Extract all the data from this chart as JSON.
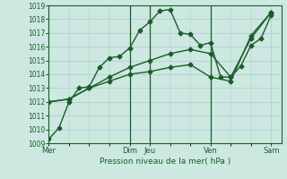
{
  "background_color": "#cce8e0",
  "grid_color": "#aacccc",
  "line_color": "#1a5c2a",
  "title": "Pression niveau de la mer( hPa )",
  "ylim": [
    1009,
    1019
  ],
  "yticks": [
    1009,
    1010,
    1011,
    1012,
    1013,
    1014,
    1015,
    1016,
    1017,
    1018,
    1019
  ],
  "x_day_labels": [
    "Mer",
    "Dim",
    "Jeu",
    "Ven",
    "Sam"
  ],
  "x_day_positions": [
    0,
    4.0,
    5.0,
    8.0,
    11.0
  ],
  "xlim": [
    0,
    11.5
  ],
  "vlines": [
    4.0,
    5.0,
    8.0
  ],
  "series1_x": [
    0,
    0.5,
    1.0,
    1.5,
    2.0,
    2.5,
    3.0,
    3.5,
    4.0,
    4.5,
    5.0,
    5.5,
    6.0,
    6.5,
    7.0,
    7.5,
    8.0,
    8.5,
    9.0,
    9.5,
    10.0,
    10.5,
    11.0
  ],
  "series1_y": [
    1009.3,
    1010.1,
    1012.0,
    1013.0,
    1013.1,
    1014.5,
    1015.2,
    1015.3,
    1015.9,
    1017.2,
    1017.8,
    1018.6,
    1018.7,
    1017.0,
    1016.9,
    1016.1,
    1016.3,
    1013.8,
    1013.8,
    1014.6,
    1016.1,
    1016.6,
    1018.3
  ],
  "series2_x": [
    0,
    1.0,
    2.0,
    3.0,
    4.0,
    5.0,
    6.0,
    7.0,
    8.0,
    9.0,
    10.0,
    11.0
  ],
  "series2_y": [
    1012.0,
    1012.2,
    1013.0,
    1013.8,
    1014.5,
    1015.0,
    1015.5,
    1015.8,
    1015.5,
    1013.8,
    1016.6,
    1018.5
  ],
  "series3_x": [
    0,
    1.0,
    2.0,
    3.0,
    4.0,
    5.0,
    6.0,
    7.0,
    8.0,
    9.0,
    10.0,
    11.0
  ],
  "series3_y": [
    1012.0,
    1012.2,
    1013.0,
    1013.5,
    1014.0,
    1014.2,
    1014.5,
    1014.7,
    1013.8,
    1013.5,
    1016.8,
    1018.5
  ],
  "marker": "D",
  "marker_size": 2.5,
  "linewidth": 1.0,
  "tick_fontsize": 5.5,
  "xlabel_fontsize": 6.5,
  "xtick_fontsize": 6.0
}
